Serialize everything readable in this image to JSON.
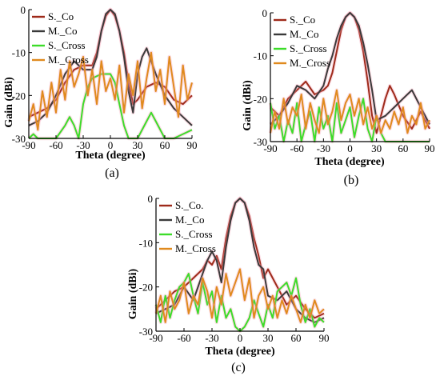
{
  "chart_data": [
    {
      "type": "line",
      "panel_label": "(a)",
      "xlabel": "Theta (degree)",
      "ylabel": "Gain (dBi)",
      "xlim": [
        -90,
        90
      ],
      "ylim": [
        -30,
        0
      ],
      "xticks": [
        -90,
        -60,
        -30,
        0,
        30,
        60,
        90
      ],
      "yticks": [
        0,
        -10,
        -20,
        -30
      ],
      "legend_position": "top-left",
      "series": [
        {
          "name": "S._Co",
          "color": "#9e2a1a",
          "x": [
            -90,
            -80,
            -70,
            -60,
            -50,
            -40,
            -30,
            -20,
            -15,
            -10,
            -5,
            0,
            5,
            10,
            15,
            20,
            25,
            30,
            40,
            50,
            60,
            70,
            80,
            90
          ],
          "y": [
            -25,
            -24,
            -23,
            -21,
            -17,
            -14,
            -13,
            -13,
            -10,
            -5,
            -1.5,
            0,
            -1.5,
            -5,
            -10,
            -17,
            -22,
            -21,
            -18,
            -17,
            -18,
            -21,
            -22,
            -20
          ]
        },
        {
          "name": "M._Co",
          "color": "#3a3a3a",
          "x": [
            -90,
            -80,
            -70,
            -60,
            -50,
            -40,
            -30,
            -20,
            -15,
            -10,
            -5,
            0,
            5,
            10,
            15,
            20,
            25,
            30,
            35,
            40,
            50,
            60,
            70,
            80,
            90
          ],
          "y": [
            -27,
            -26,
            -24,
            -20,
            -15,
            -12,
            -14,
            -14,
            -11,
            -5,
            -1,
            0,
            -1,
            -5,
            -11,
            -19,
            -24,
            -15,
            -11,
            -9,
            -15,
            -20,
            -23,
            -25,
            -27
          ]
        },
        {
          "name": "S._Cross",
          "color": "#3ddc2a",
          "x": [
            -90,
            -85,
            -80,
            -70,
            -60,
            -50,
            -45,
            -40,
            -35,
            -30,
            -25,
            -20,
            -10,
            0,
            5,
            10,
            15,
            20,
            30,
            40,
            45,
            50,
            60,
            70,
            80,
            90
          ],
          "y": [
            -30,
            -29,
            -30,
            -30,
            -30,
            -27,
            -25,
            -27,
            -30,
            -22,
            -18,
            -16,
            -15,
            -15,
            -17,
            -22,
            -27,
            -30,
            -30,
            -26,
            -24,
            -26,
            -30,
            -30,
            -29,
            -28
          ]
        },
        {
          "name": "M._Cross",
          "color": "#e08a1e",
          "x": [
            -90,
            -85,
            -80,
            -75,
            -70,
            -65,
            -60,
            -55,
            -50,
            -45,
            -40,
            -35,
            -30,
            -25,
            -20,
            -15,
            -10,
            -5,
            0,
            5,
            10,
            15,
            20,
            25,
            30,
            35,
            40,
            45,
            50,
            55,
            60,
            65,
            70,
            75,
            80,
            85,
            90
          ],
          "y": [
            -26,
            -22,
            -28,
            -19,
            -25,
            -17,
            -24,
            -14,
            -21,
            -12,
            -18,
            -15,
            -11,
            -20,
            -14,
            -22,
            -12,
            -19,
            -16,
            -21,
            -13,
            -24,
            -15,
            -20,
            -12,
            -23,
            -16,
            -10,
            -19,
            -14,
            -22,
            -11,
            -18,
            -25,
            -13,
            -21,
            -17
          ]
        }
      ]
    },
    {
      "type": "line",
      "panel_label": "(b)",
      "xlabel": "Theta (degree)",
      "ylabel": "Gain (dBi)",
      "xlim": [
        -90,
        90
      ],
      "ylim": [
        -30,
        0
      ],
      "xticks": [
        -90,
        -60,
        -30,
        0,
        30,
        60,
        90
      ],
      "yticks": [
        0,
        -10,
        -20,
        -30
      ],
      "legend_position": "top-left",
      "series": [
        {
          "name": "S._Co",
          "color": "#9e2a1a",
          "x": [
            -90,
            -80,
            -70,
            -60,
            -50,
            -40,
            -30,
            -25,
            -20,
            -15,
            -10,
            -5,
            0,
            5,
            10,
            15,
            20,
            25,
            30,
            40,
            45,
            50,
            60,
            70,
            80,
            90
          ],
          "y": [
            -22,
            -24,
            -20,
            -18,
            -16,
            -19,
            -18,
            -17,
            -14,
            -9,
            -4,
            -1,
            0,
            -1,
            -4,
            -9,
            -16,
            -24,
            -28,
            -20,
            -17,
            -19,
            -24,
            -27,
            -23,
            -27
          ]
        },
        {
          "name": "M._Co",
          "color": "#3a3a3a",
          "x": [
            -90,
            -80,
            -70,
            -60,
            -50,
            -40,
            -30,
            -25,
            -20,
            -15,
            -10,
            -5,
            0,
            5,
            10,
            15,
            20,
            25,
            30,
            40,
            50,
            60,
            70,
            80,
            90
          ],
          "y": [
            -26,
            -24,
            -21,
            -17,
            -18,
            -20,
            -17,
            -13,
            -10,
            -6,
            -3,
            -1,
            0,
            -1,
            -3,
            -7,
            -12,
            -18,
            -25,
            -24,
            -22,
            -20,
            -18,
            -22,
            -26
          ]
        },
        {
          "name": "S._Cross",
          "color": "#3ddc2a",
          "x": [
            -90,
            -85,
            -80,
            -75,
            -70,
            -65,
            -60,
            -55,
            -50,
            -45,
            -40,
            -35,
            -30,
            -25,
            -20,
            -15,
            -10,
            -5,
            0,
            5,
            10,
            15,
            20,
            25,
            30,
            35,
            40,
            45,
            50,
            55,
            60,
            65,
            70,
            75,
            80,
            85,
            90
          ],
          "y": [
            -21,
            -27,
            -24,
            -30,
            -25,
            -28,
            -21,
            -30,
            -26,
            -23,
            -30,
            -22,
            -27,
            -24,
            -30,
            -21,
            -28,
            -25,
            -22,
            -29,
            -24,
            -20,
            -27,
            -30,
            -24,
            -28,
            -30,
            -30,
            -30,
            -30,
            -30,
            -30,
            -30,
            -30,
            -30,
            -30,
            -30
          ]
        },
        {
          "name": "M._Cross",
          "color": "#e08a1e",
          "x": [
            -90,
            -85,
            -80,
            -75,
            -70,
            -65,
            -60,
            -55,
            -50,
            -45,
            -40,
            -35,
            -30,
            -25,
            -20,
            -15,
            -10,
            -5,
            0,
            5,
            10,
            15,
            20,
            25,
            30,
            35,
            40,
            45,
            50,
            55,
            60,
            65,
            70,
            75,
            80,
            85,
            90
          ],
          "y": [
            -28,
            -23,
            -27,
            -20,
            -26,
            -22,
            -24,
            -19,
            -27,
            -21,
            -25,
            -28,
            -20,
            -26,
            -23,
            -18,
            -25,
            -21,
            -19,
            -24,
            -20,
            -26,
            -22,
            -27,
            -24,
            -28,
            -25,
            -27,
            -23,
            -26,
            -22,
            -28,
            -24,
            -26,
            -21,
            -27,
            -25
          ]
        }
      ]
    },
    {
      "type": "line",
      "panel_label": "(c)",
      "xlabel": "Theta (degree)",
      "ylabel": "Gain (dBi)",
      "xlim": [
        -90,
        90
      ],
      "ylim": [
        -30,
        0
      ],
      "xticks": [
        -90,
        -60,
        -30,
        0,
        30,
        60,
        90
      ],
      "yticks": [
        0,
        -10,
        -20,
        -30
      ],
      "legend_position": "top-left",
      "series": [
        {
          "name": "S._Co.",
          "color": "#9e2a1a",
          "x": [
            -90,
            -80,
            -70,
            -60,
            -50,
            -40,
            -35,
            -30,
            -25,
            -20,
            -15,
            -10,
            -5,
            0,
            5,
            10,
            15,
            20,
            25,
            30,
            40,
            50,
            60,
            70,
            80,
            90
          ],
          "y": [
            -25,
            -23,
            -21,
            -20,
            -18,
            -16,
            -14,
            -15,
            -13,
            -16,
            -9,
            -4,
            -1,
            0,
            -1,
            -4,
            -9,
            -13,
            -18,
            -16,
            -20,
            -24,
            -22,
            -25,
            -27,
            -26
          ]
        },
        {
          "name": "M._Co",
          "color": "#3a3a3a",
          "x": [
            -90,
            -80,
            -70,
            -60,
            -50,
            -40,
            -35,
            -30,
            -25,
            -20,
            -15,
            -10,
            -5,
            0,
            5,
            10,
            15,
            20,
            25,
            30,
            40,
            50,
            60,
            70,
            80,
            90
          ],
          "y": [
            -26,
            -25,
            -24,
            -20,
            -23,
            -17,
            -14,
            -12,
            -14,
            -19,
            -11,
            -5,
            -1,
            0,
            -1,
            -5,
            -11,
            -15,
            -16,
            -22,
            -23,
            -21,
            -25,
            -27,
            -28,
            -27
          ]
        },
        {
          "name": "S._Cross",
          "color": "#3ddc2a",
          "x": [
            -90,
            -85,
            -80,
            -75,
            -70,
            -65,
            -60,
            -55,
            -50,
            -45,
            -40,
            -35,
            -30,
            -25,
            -20,
            -15,
            -10,
            -5,
            0,
            5,
            10,
            15,
            20,
            25,
            30,
            35,
            40,
            45,
            50,
            55,
            60,
            65,
            70,
            75,
            80,
            85,
            90
          ],
          "y": [
            -24,
            -28,
            -22,
            -27,
            -23,
            -20,
            -19,
            -17,
            -22,
            -26,
            -19,
            -24,
            -21,
            -28,
            -22,
            -27,
            -25,
            -29,
            -30,
            -29,
            -27,
            -23,
            -26,
            -29,
            -24,
            -27,
            -21,
            -20,
            -19,
            -22,
            -18,
            -24,
            -28,
            -25,
            -29,
            -27,
            -28
          ]
        },
        {
          "name": "M._Cross",
          "color": "#e08a1e",
          "x": [
            -90,
            -85,
            -80,
            -75,
            -70,
            -65,
            -60,
            -55,
            -50,
            -45,
            -40,
            -35,
            -30,
            -25,
            -20,
            -15,
            -10,
            -5,
            0,
            5,
            10,
            15,
            20,
            25,
            30,
            35,
            40,
            45,
            50,
            55,
            60,
            65,
            70,
            75,
            80,
            85,
            90
          ],
          "y": [
            -26,
            -22,
            -28,
            -21,
            -25,
            -23,
            -19,
            -26,
            -22,
            -24,
            -18,
            -21,
            -27,
            -20,
            -24,
            -17,
            -22,
            -19,
            -16,
            -23,
            -18,
            -27,
            -22,
            -20,
            -25,
            -22,
            -27,
            -23,
            -26,
            -22,
            -25,
            -28,
            -24,
            -27,
            -23,
            -26,
            -25
          ]
        }
      ]
    }
  ]
}
